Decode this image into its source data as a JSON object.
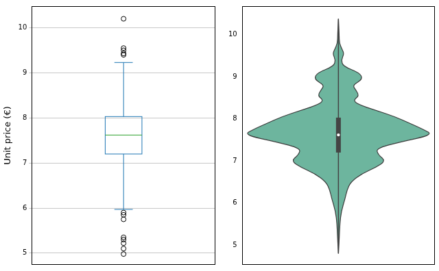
{
  "chart_data": [
    {
      "type": "box",
      "y_label": "Unit price (€)",
      "ylim": [
        4.74,
        10.48
      ],
      "yticks": [
        5,
        6,
        7,
        8,
        9,
        10
      ],
      "grid": true,
      "color": "#1f77b4",
      "median_color": "#2ca02c",
      "whisker_low": 5.97,
      "q1": 7.2,
      "median": 7.62,
      "q3": 8.03,
      "whisker_high": 9.23,
      "outliers": [
        10.2,
        9.55,
        9.5,
        9.43,
        9.4,
        5.9,
        5.85,
        5.75,
        5.35,
        5.3,
        5.22,
        5.1,
        4.98
      ]
    },
    {
      "type": "violin",
      "ylim": [
        4.53,
        10.68
      ],
      "yticks": [
        5,
        6,
        7,
        8,
        9,
        10
      ],
      "grid": false,
      "color": "#6db59e",
      "y": [
        4.8,
        5.2,
        5.5,
        5.8,
        6.1,
        6.3,
        6.5,
        6.7,
        6.85,
        7.0,
        7.15,
        7.3,
        7.45,
        7.62,
        7.75,
        7.9,
        8.05,
        8.2,
        8.35,
        8.45,
        8.55,
        8.7,
        8.8,
        8.95,
        9.1,
        9.25,
        9.4,
        9.55,
        9.65,
        9.8,
        10.0,
        10.38
      ],
      "density": [
        0,
        0.01,
        0.015,
        0.03,
        0.07,
        0.09,
        0.13,
        0.25,
        0.4,
        0.5,
        0.42,
        0.4,
        0.65,
        1.0,
        0.9,
        0.75,
        0.6,
        0.4,
        0.2,
        0.16,
        0.22,
        0.18,
        0.15,
        0.26,
        0.22,
        0.05,
        0.03,
        0.06,
        0.04,
        0.01,
        0.008,
        0
      ],
      "box_min": 4.8,
      "q1": 7.2,
      "median": 7.62,
      "q3": 8.03,
      "box_max": 10.38
    }
  ]
}
